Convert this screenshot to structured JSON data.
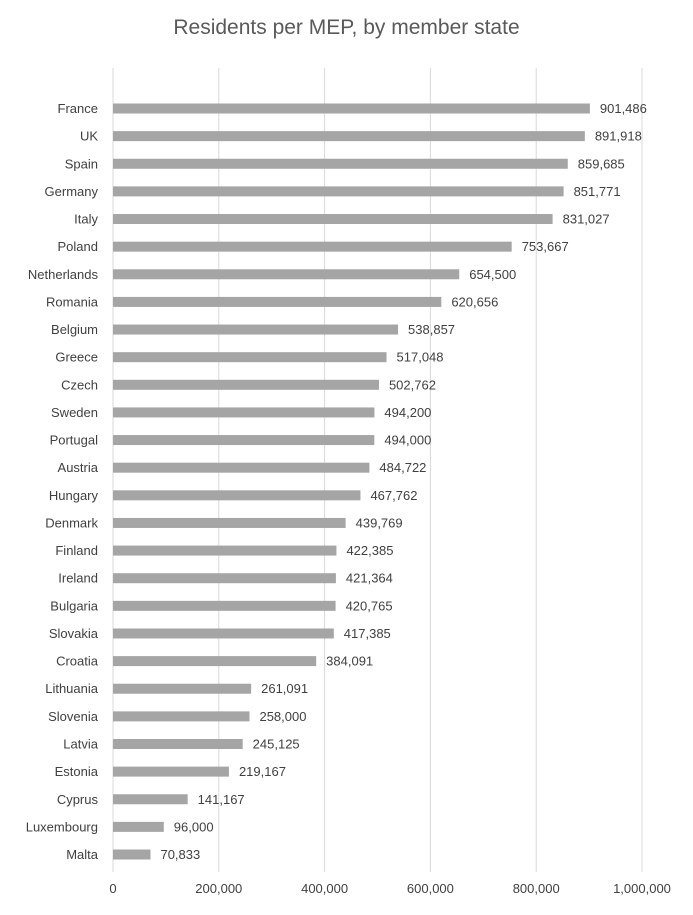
{
  "chart_data": {
    "type": "bar",
    "orientation": "horizontal",
    "title": "Residents per MEP, by member state",
    "categories": [
      "France",
      "UK",
      "Spain",
      "Germany",
      "Italy",
      "Poland",
      "Netherlands",
      "Romania",
      "Belgium",
      "Greece",
      "Czech",
      "Sweden",
      "Portugal",
      "Austria",
      "Hungary",
      "Denmark",
      "Finland",
      "Ireland",
      "Bulgaria",
      "Slovakia",
      "Croatia",
      "Lithuania",
      "Slovenia",
      "Latvia",
      "Estonia",
      "Cyprus",
      "Luxembourg",
      "Malta"
    ],
    "values": [
      901486,
      891918,
      859685,
      851771,
      831027,
      753667,
      654500,
      620656,
      538857,
      517048,
      502762,
      494200,
      494000,
      484722,
      467762,
      439769,
      422385,
      421364,
      420765,
      417385,
      384091,
      261091,
      258000,
      245125,
      219167,
      141167,
      96000,
      70833
    ],
    "value_labels": [
      "901,486",
      "891,918",
      "859,685",
      "851,771",
      "831,027",
      "753,667",
      "654,500",
      "620,656",
      "538,857",
      "517,048",
      "502,762",
      "494,200",
      "494,000",
      "484,722",
      "467,762",
      "439,769",
      "422,385",
      "421,364",
      "420,765",
      "417,385",
      "384,091",
      "261,091",
      "258,000",
      "245,125",
      "219,167",
      "141,167",
      "96,000",
      "70,833"
    ],
    "xlim": [
      0,
      1000000
    ],
    "x_ticks": [
      0,
      200000,
      400000,
      600000,
      800000,
      1000000
    ],
    "x_tick_labels": [
      "0",
      "200,000",
      "400,000",
      "600,000",
      "800,000",
      "1,000,000"
    ],
    "grid": "vertical",
    "legend": "none",
    "bar_color": "#a5a5a5",
    "grid_color": "#d9d9d9",
    "text_color": "#404040",
    "title_color": "#595959"
  }
}
